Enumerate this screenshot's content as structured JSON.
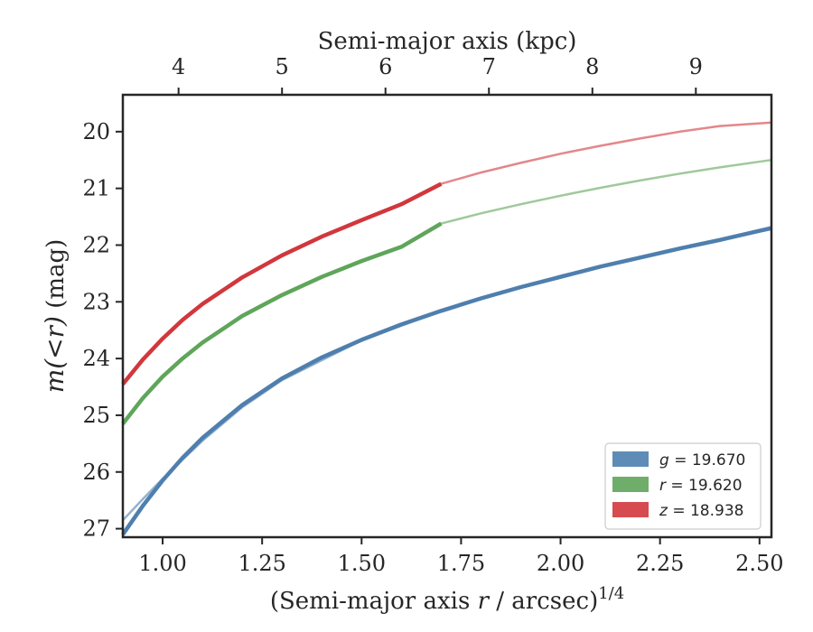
{
  "chart_data": {
    "type": "line",
    "x_axis": {
      "label_prefix": "(Semi-major axis ",
      "label_var": "r",
      "label_suffix": " / arcsec)",
      "label_exponent": "1/4",
      "range": [
        0.9,
        2.53
      ],
      "ticks": [
        1.0,
        1.25,
        1.5,
        1.75,
        2.0,
        2.25,
        2.5
      ],
      "tick_labels": [
        "1.00",
        "1.25",
        "1.50",
        "1.75",
        "2.00",
        "2.25",
        "2.50"
      ]
    },
    "x2_axis": {
      "label": "Semi-major axis (kpc)",
      "ticks": [
        4,
        5,
        6,
        7,
        8,
        9
      ],
      "tick_labels": [
        "4",
        "5",
        "6",
        "7",
        "8",
        "9"
      ],
      "tick_positions_xdata": [
        1.04,
        1.3,
        1.56,
        1.82,
        2.08,
        2.34
      ]
    },
    "y_axis": {
      "label_var": "m(<r)",
      "label_unit": " (mag)",
      "range": [
        27.15,
        19.35
      ],
      "inverted": true,
      "ticks": [
        20,
        21,
        22,
        23,
        24,
        25,
        26,
        27
      ],
      "tick_labels": [
        "20",
        "21",
        "22",
        "23",
        "24",
        "25",
        "26",
        "27"
      ]
    },
    "series": [
      {
        "name": "g = 19.670",
        "legend_var": "g",
        "legend_value": " = 19.670",
        "color": "#4e7fae",
        "measured": {
          "x": [
            0.9,
            0.95,
            1.0,
            1.05,
            1.1,
            1.2,
            1.3,
            1.4,
            1.5,
            1.6,
            1.7,
            1.8,
            1.9,
            2.0,
            2.1,
            2.2,
            2.3,
            2.4,
            2.53
          ],
          "y": [
            27.1,
            26.6,
            26.15,
            25.75,
            25.4,
            24.82,
            24.35,
            23.98,
            23.67,
            23.4,
            23.16,
            22.94,
            22.74,
            22.56,
            22.38,
            22.22,
            22.06,
            21.91,
            21.7
          ]
        },
        "model": {
          "x": [
            0.9,
            0.95,
            1.0,
            1.1,
            1.2,
            1.3,
            1.5,
            1.7,
            2.0,
            2.3,
            2.53
          ],
          "y": [
            26.85,
            26.48,
            26.12,
            25.45,
            24.86,
            24.38,
            23.68,
            23.16,
            22.54,
            22.05,
            21.72
          ]
        }
      },
      {
        "name": "r = 19.620",
        "legend_var": "r",
        "legend_value": " = 19.620",
        "color": "#5fa55a",
        "measured": {
          "x": [
            0.9,
            0.95,
            1.0,
            1.05,
            1.1,
            1.2,
            1.3,
            1.4,
            1.5,
            1.6,
            1.7
          ],
          "y": [
            25.15,
            24.7,
            24.32,
            24.0,
            23.72,
            23.25,
            22.88,
            22.56,
            22.28,
            22.03,
            21.62
          ]
        },
        "model": {
          "x": [
            1.7,
            1.8,
            1.9,
            2.0,
            2.1,
            2.2,
            2.3,
            2.4,
            2.53
          ],
          "y": [
            21.62,
            21.44,
            21.28,
            21.13,
            20.99,
            20.86,
            20.74,
            20.63,
            20.5
          ]
        }
      },
      {
        "name": "z = 18.938",
        "legend_var": "z",
        "legend_value": " = 18.938",
        "color": "#d1373c",
        "measured": {
          "x": [
            0.9,
            0.95,
            1.0,
            1.05,
            1.1,
            1.2,
            1.3,
            1.4,
            1.5,
            1.6,
            1.7
          ],
          "y": [
            24.45,
            24.02,
            23.65,
            23.32,
            23.04,
            22.57,
            22.18,
            21.85,
            21.56,
            21.28,
            20.92
          ]
        },
        "model": {
          "x": [
            1.7,
            1.8,
            1.9,
            2.0,
            2.1,
            2.2,
            2.3,
            2.4,
            2.53
          ],
          "y": [
            20.92,
            20.72,
            20.55,
            20.39,
            20.25,
            20.12,
            20.0,
            19.9,
            19.84
          ]
        }
      }
    ],
    "legend_position": "lower-right",
    "grid": false
  }
}
